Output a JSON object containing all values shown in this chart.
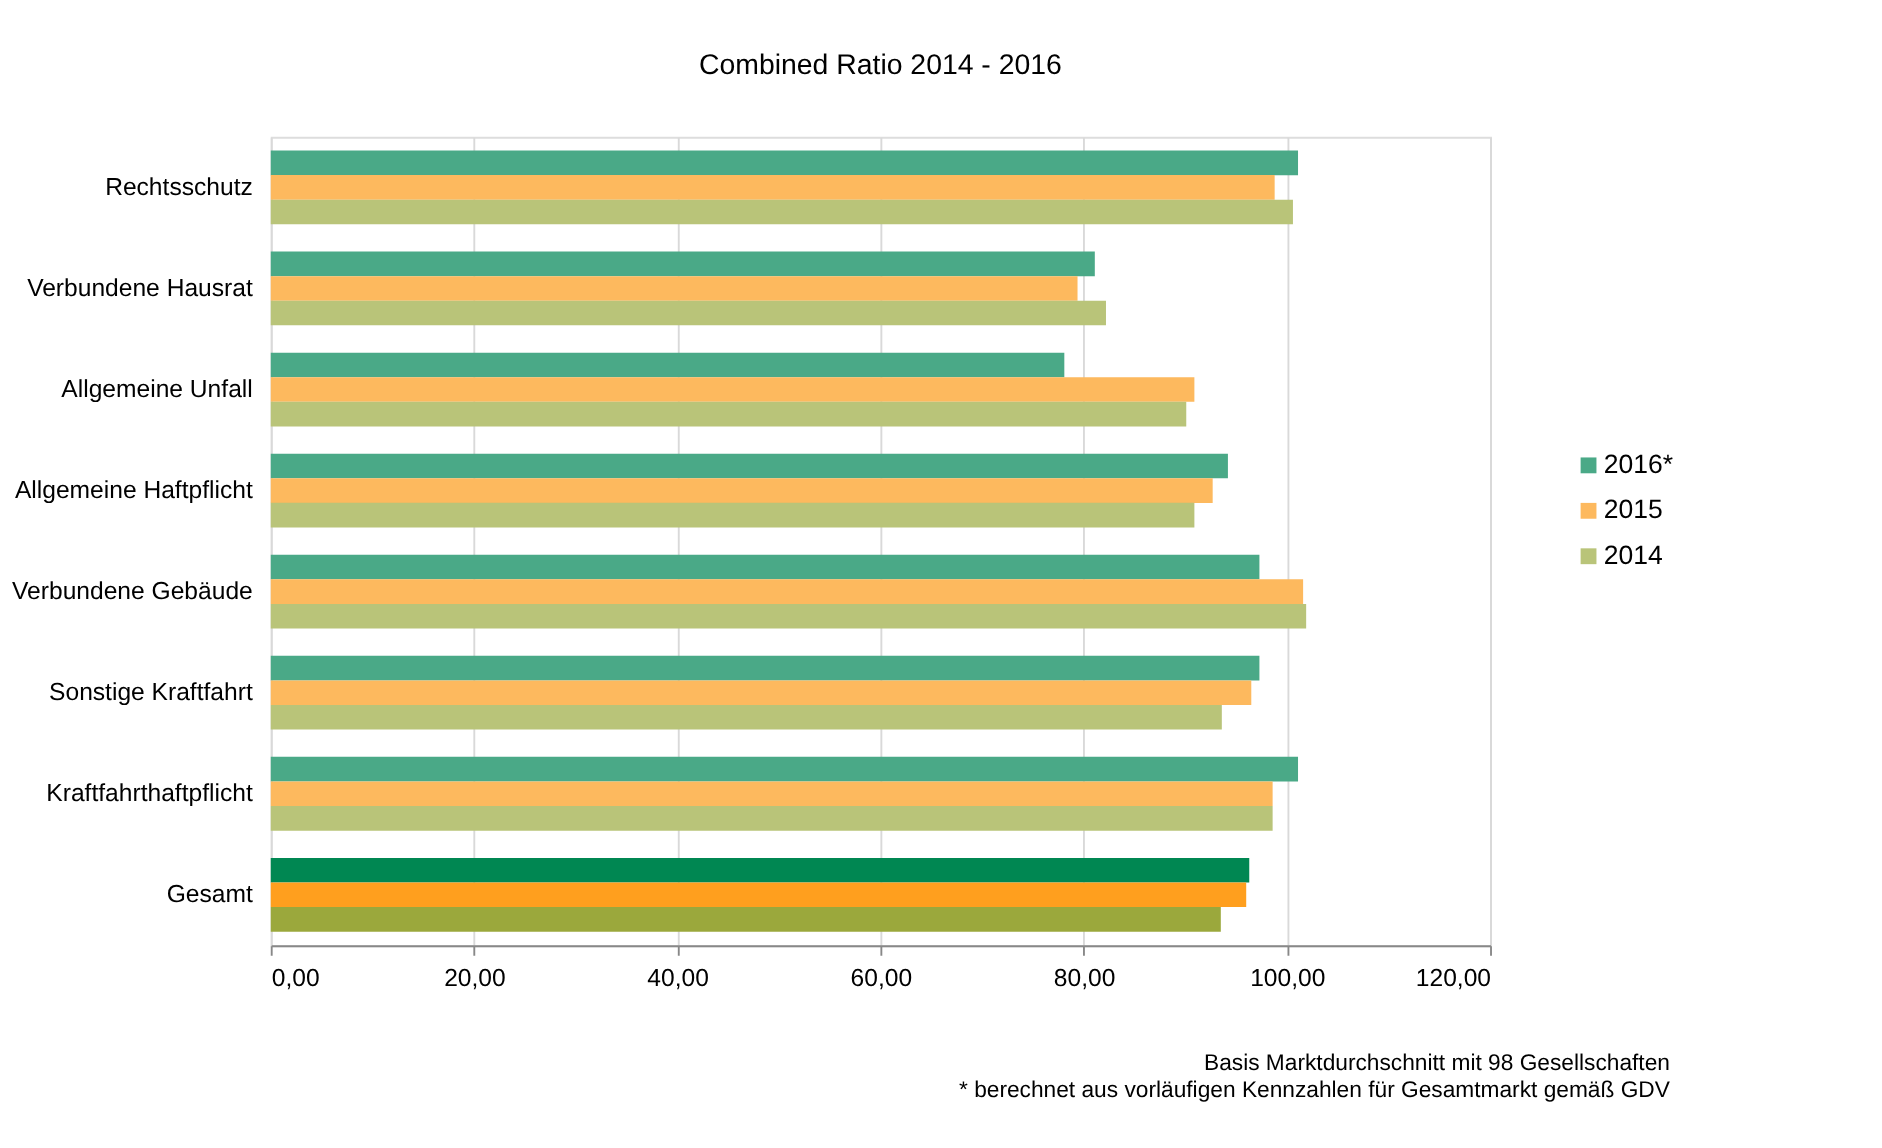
{
  "chart_data": {
    "type": "bar",
    "orientation": "horizontal",
    "title": "Combined Ratio 2014 - 2016",
    "categories": [
      "Rechtsschutz",
      "Verbundene Hausrat",
      "Allgemeine Unfall",
      "Allgemeine Haftpflicht",
      "Verbundene Gebäude",
      "Sonstige Kraftfahrt",
      "Kraftfahrthaftpflicht",
      "Gesamt"
    ],
    "series": [
      {
        "name": "2016*",
        "color": "#4aa987",
        "colors": [
          "#4aa987",
          "#4aa987",
          "#4aa987",
          "#4aa987",
          "#4aa987",
          "#4aa987",
          "#4aa987",
          "#008752"
        ],
        "values": [
          101.1,
          81.1,
          78.1,
          94.2,
          97.3,
          97.3,
          101.1,
          96.3
        ]
      },
      {
        "name": "2015",
        "color": "#fdb95e",
        "colors": [
          "#fdb95e",
          "#fdb95e",
          "#fdb95e",
          "#fdb95e",
          "#fdb95e",
          "#fdb95e",
          "#fdb95e",
          "#ff9f1e"
        ],
        "values": [
          98.8,
          79.4,
          90.9,
          92.7,
          101.6,
          96.5,
          98.6,
          96.0
        ]
      },
      {
        "name": "2014",
        "color": "#b9c479",
        "colors": [
          "#b9c479",
          "#b9c479",
          "#b9c479",
          "#b9c479",
          "#b9c479",
          "#b9c479",
          "#b9c479",
          "#9ba83c"
        ],
        "values": [
          100.6,
          82.2,
          90.1,
          90.9,
          101.9,
          93.6,
          98.6,
          93.5
        ]
      }
    ],
    "xlim": [
      0,
      120
    ],
    "xticks": [
      {
        "value": 0,
        "label": "0,00"
      },
      {
        "value": 20,
        "label": "20,00"
      },
      {
        "value": 40,
        "label": "40,00"
      },
      {
        "value": 60,
        "label": "60,00"
      },
      {
        "value": 80,
        "label": "80,00"
      },
      {
        "value": 100,
        "label": "100,00"
      },
      {
        "value": 120,
        "label": "120,00"
      }
    ],
    "grid": "x",
    "legend": "right",
    "annotations": [
      "Basis Marktdurchschnitt mit 98 Gesellschaften",
      "* berechnet aus vorläufigen Kennzahlen für Gesamtmarkt gemäß GDV"
    ]
  }
}
